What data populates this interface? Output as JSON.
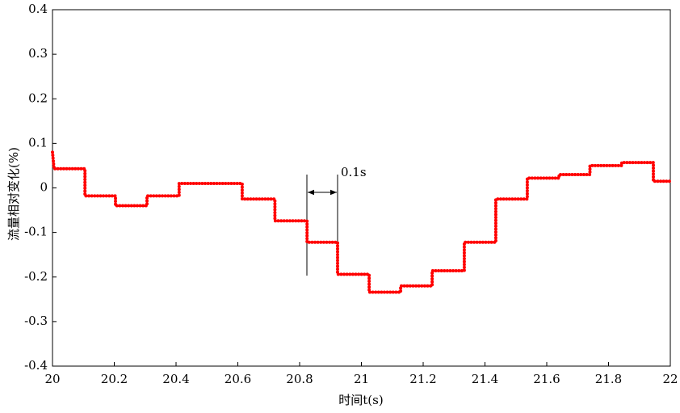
{
  "chart_data": {
    "type": "line",
    "x_label": "时间t(s)",
    "y_label": "流量相对变化(%)",
    "annotation": "0.1s",
    "xlim": [
      20,
      22
    ],
    "xticks": [
      20,
      20.2,
      20.4,
      20.6,
      20.8,
      21,
      21.2,
      21.4,
      21.6,
      21.8,
      22
    ],
    "ylim": [
      -0.4,
      0.4
    ],
    "yticks": [
      -0.4,
      -0.3,
      -0.2,
      -0.1,
      0,
      0.1,
      0.2,
      0.3,
      0.4
    ],
    "x": [
      20,
      20.005,
      20.105,
      20.105,
      20.204,
      20.204,
      20.306,
      20.306,
      20.41,
      20.41,
      20.614,
      20.614,
      20.72,
      20.72,
      20.824,
      20.824,
      20.923,
      20.923,
      21.025,
      21.025,
      21.127,
      21.127,
      21.229,
      21.229,
      21.333,
      21.333,
      21.435,
      21.435,
      21.537,
      21.537,
      21.64,
      21.64,
      21.74,
      21.74,
      21.843,
      21.843,
      21.945,
      21.945,
      22
    ],
    "series": [
      {
        "color": "#ff0000",
        "values": [
          0.08,
          0.043,
          0.043,
          -0.018,
          -0.018,
          -0.04,
          -0.04,
          -0.018,
          -0.018,
          0.01,
          0.01,
          -0.025,
          -0.025,
          -0.074,
          -0.074,
          -0.122,
          -0.122,
          -0.194,
          -0.194,
          -0.234,
          -0.234,
          -0.22,
          -0.22,
          -0.186,
          -0.186,
          -0.122,
          -0.122,
          -0.025,
          -0.025,
          0.022,
          0.022,
          0.03,
          0.03,
          0.05,
          0.05,
          0.057,
          0.057,
          0.015,
          0.015
        ]
      }
    ]
  }
}
